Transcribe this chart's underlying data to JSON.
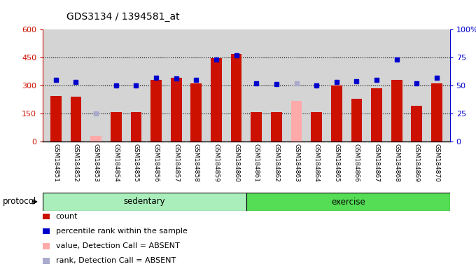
{
  "title": "GDS3134 / 1394581_at",
  "samples": [
    "GSM184851",
    "GSM184852",
    "GSM184853",
    "GSM184854",
    "GSM184855",
    "GSM184856",
    "GSM184857",
    "GSM184858",
    "GSM184859",
    "GSM184860",
    "GSM184861",
    "GSM184862",
    "GSM184863",
    "GSM184864",
    "GSM184865",
    "GSM184866",
    "GSM184867",
    "GSM184868",
    "GSM184869",
    "GSM184870"
  ],
  "count_values": [
    245,
    240,
    null,
    155,
    155,
    330,
    340,
    310,
    445,
    470,
    155,
    155,
    null,
    155,
    300,
    230,
    285,
    330,
    190,
    310
  ],
  "absent_values": [
    null,
    null,
    30,
    null,
    null,
    null,
    null,
    null,
    null,
    null,
    null,
    null,
    215,
    null,
    null,
    null,
    null,
    null,
    null,
    null
  ],
  "blue_values": [
    55,
    53,
    null,
    50,
    50,
    57,
    56,
    55,
    73,
    77,
    52,
    51,
    null,
    50,
    53,
    54,
    55,
    73,
    52,
    57
  ],
  "blue_absent_values": [
    null,
    null,
    25,
    null,
    null,
    null,
    null,
    null,
    null,
    null,
    null,
    null,
    52,
    null,
    null,
    null,
    null,
    null,
    null,
    null
  ],
  "ylim_left": [
    0,
    600
  ],
  "ylim_right": [
    0,
    100
  ],
  "yticks_left": [
    0,
    150,
    300,
    450,
    600
  ],
  "yticks_right": [
    0,
    25,
    50,
    75,
    100
  ],
  "bar_color": "#cc1100",
  "absent_bar_color": "#ffaaaa",
  "blue_dot_color": "#0000cc",
  "blue_absent_dot_color": "#aaaacc",
  "bg_color": "#d4d4d4",
  "white_bg": "#ffffff",
  "sedentary_color": "#aaeebb",
  "exercise_color": "#55dd55",
  "protocol_label": "protocol",
  "sedentary_label": "sedentary",
  "exercise_label": "exercise",
  "legend_items": [
    {
      "color": "#cc1100",
      "label": "count"
    },
    {
      "color": "#0000cc",
      "label": "percentile rank within the sample"
    },
    {
      "color": "#ffaaaa",
      "label": "value, Detection Call = ABSENT"
    },
    {
      "color": "#aaaacc",
      "label": "rank, Detection Call = ABSENT"
    }
  ]
}
